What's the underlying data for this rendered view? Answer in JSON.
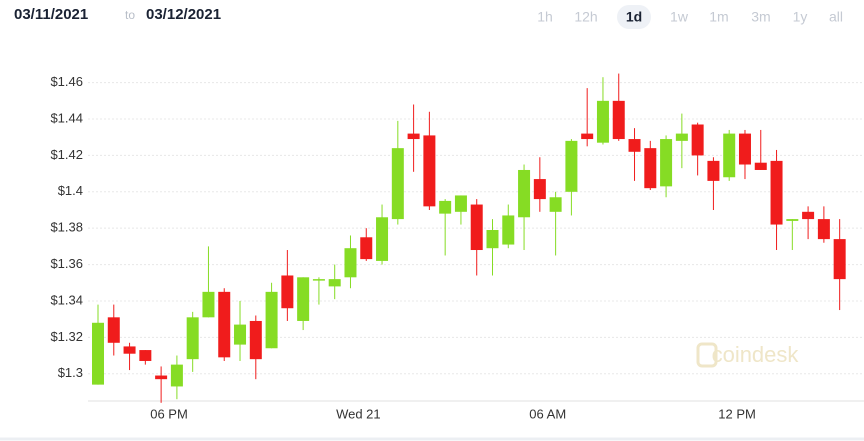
{
  "header": {
    "from": "03/11/2021",
    "separator": "to",
    "to": "03/12/2021",
    "ranges": [
      "1h",
      "12h",
      "1d",
      "1w",
      "1m",
      "3m",
      "1y",
      "all"
    ],
    "active_range": "1d"
  },
  "watermark": "coindesk",
  "chart_data": {
    "type": "candlestick",
    "categories": [
      null,
      null,
      null,
      null,
      "06 PM",
      null,
      null,
      null,
      null,
      null,
      null,
      null,
      null,
      null,
      null,
      null,
      "Wed 21",
      null,
      null,
      null,
      null,
      null,
      null,
      null,
      null,
      null,
      null,
      null,
      "06 AM",
      null,
      null,
      null,
      null,
      null,
      null,
      null,
      null,
      null,
      null,
      null,
      "12 PM",
      null,
      null,
      null,
      null,
      null,
      null,
      null
    ],
    "open": [
      1.294,
      1.331,
      1.315,
      1.313,
      1.299,
      1.293,
      1.308,
      1.331,
      1.345,
      1.316,
      1.329,
      1.314,
      1.354,
      1.329,
      1.352,
      1.348,
      1.353,
      1.375,
      1.362,
      1.385,
      1.432,
      1.431,
      1.388,
      1.389,
      1.393,
      1.369,
      1.371,
      1.386,
      1.407,
      1.389,
      1.4,
      1.432,
      1.427,
      1.45,
      1.429,
      1.424,
      1.403,
      1.428,
      1.437,
      1.417,
      1.408,
      1.432,
      1.416,
      1.417,
      1.384,
      1.389,
      1.385,
      1.374
    ],
    "high": [
      1.338,
      1.338,
      1.317,
      1.313,
      1.304,
      1.31,
      1.334,
      1.37,
      1.347,
      1.34,
      1.332,
      1.35,
      1.368,
      1.353,
      1.353,
      1.36,
      1.376,
      1.38,
      1.393,
      1.439,
      1.448,
      1.444,
      1.396,
      1.398,
      1.396,
      1.385,
      1.393,
      1.415,
      1.419,
      1.4,
      1.429,
      1.457,
      1.463,
      1.465,
      1.435,
      1.428,
      1.431,
      1.443,
      1.438,
      1.419,
      1.434,
      1.434,
      1.434,
      1.423,
      1.385,
      1.392,
      1.392,
      1.385
    ],
    "low": [
      1.294,
      1.31,
      1.302,
      1.305,
      1.284,
      1.286,
      1.301,
      1.331,
      1.307,
      1.307,
      1.297,
      1.314,
      1.329,
      1.324,
      1.338,
      1.341,
      1.347,
      1.362,
      1.36,
      1.382,
      1.411,
      1.39,
      1.365,
      1.382,
      1.354,
      1.354,
      1.369,
      1.368,
      1.389,
      1.365,
      1.387,
      1.425,
      1.426,
      1.428,
      1.406,
      1.401,
      1.397,
      1.413,
      1.409,
      1.39,
      1.406,
      1.407,
      1.412,
      1.368,
      1.368,
      1.374,
      1.372,
      1.335
    ],
    "close": [
      1.328,
      1.317,
      1.311,
      1.307,
      1.297,
      1.305,
      1.331,
      1.345,
      1.309,
      1.327,
      1.308,
      1.345,
      1.336,
      1.353,
      1.352,
      1.352,
      1.369,
      1.363,
      1.386,
      1.424,
      1.429,
      1.392,
      1.395,
      1.398,
      1.368,
      1.379,
      1.387,
      1.412,
      1.396,
      1.397,
      1.428,
      1.429,
      1.45,
      1.429,
      1.422,
      1.402,
      1.429,
      1.432,
      1.42,
      1.406,
      1.432,
      1.415,
      1.412,
      1.382,
      1.385,
      1.385,
      1.374,
      1.352
    ],
    "up_color": "#86dc24",
    "down_color": "#f01c1c",
    "ylim": [
      1.285,
      1.484
    ],
    "yticks": [
      {
        "value": 1.3,
        "label": "$1.3"
      },
      {
        "value": 1.32,
        "label": "$1.32"
      },
      {
        "value": 1.34,
        "label": "$1.34"
      },
      {
        "value": 1.36,
        "label": "$1.36"
      },
      {
        "value": 1.38,
        "label": "$1.38"
      },
      {
        "value": 1.4,
        "label": "$1.4"
      },
      {
        "value": 1.42,
        "label": "$1.42"
      },
      {
        "value": 1.44,
        "label": "$1.44"
      },
      {
        "value": 1.46,
        "label": "$1.46"
      }
    ],
    "grid": true
  }
}
